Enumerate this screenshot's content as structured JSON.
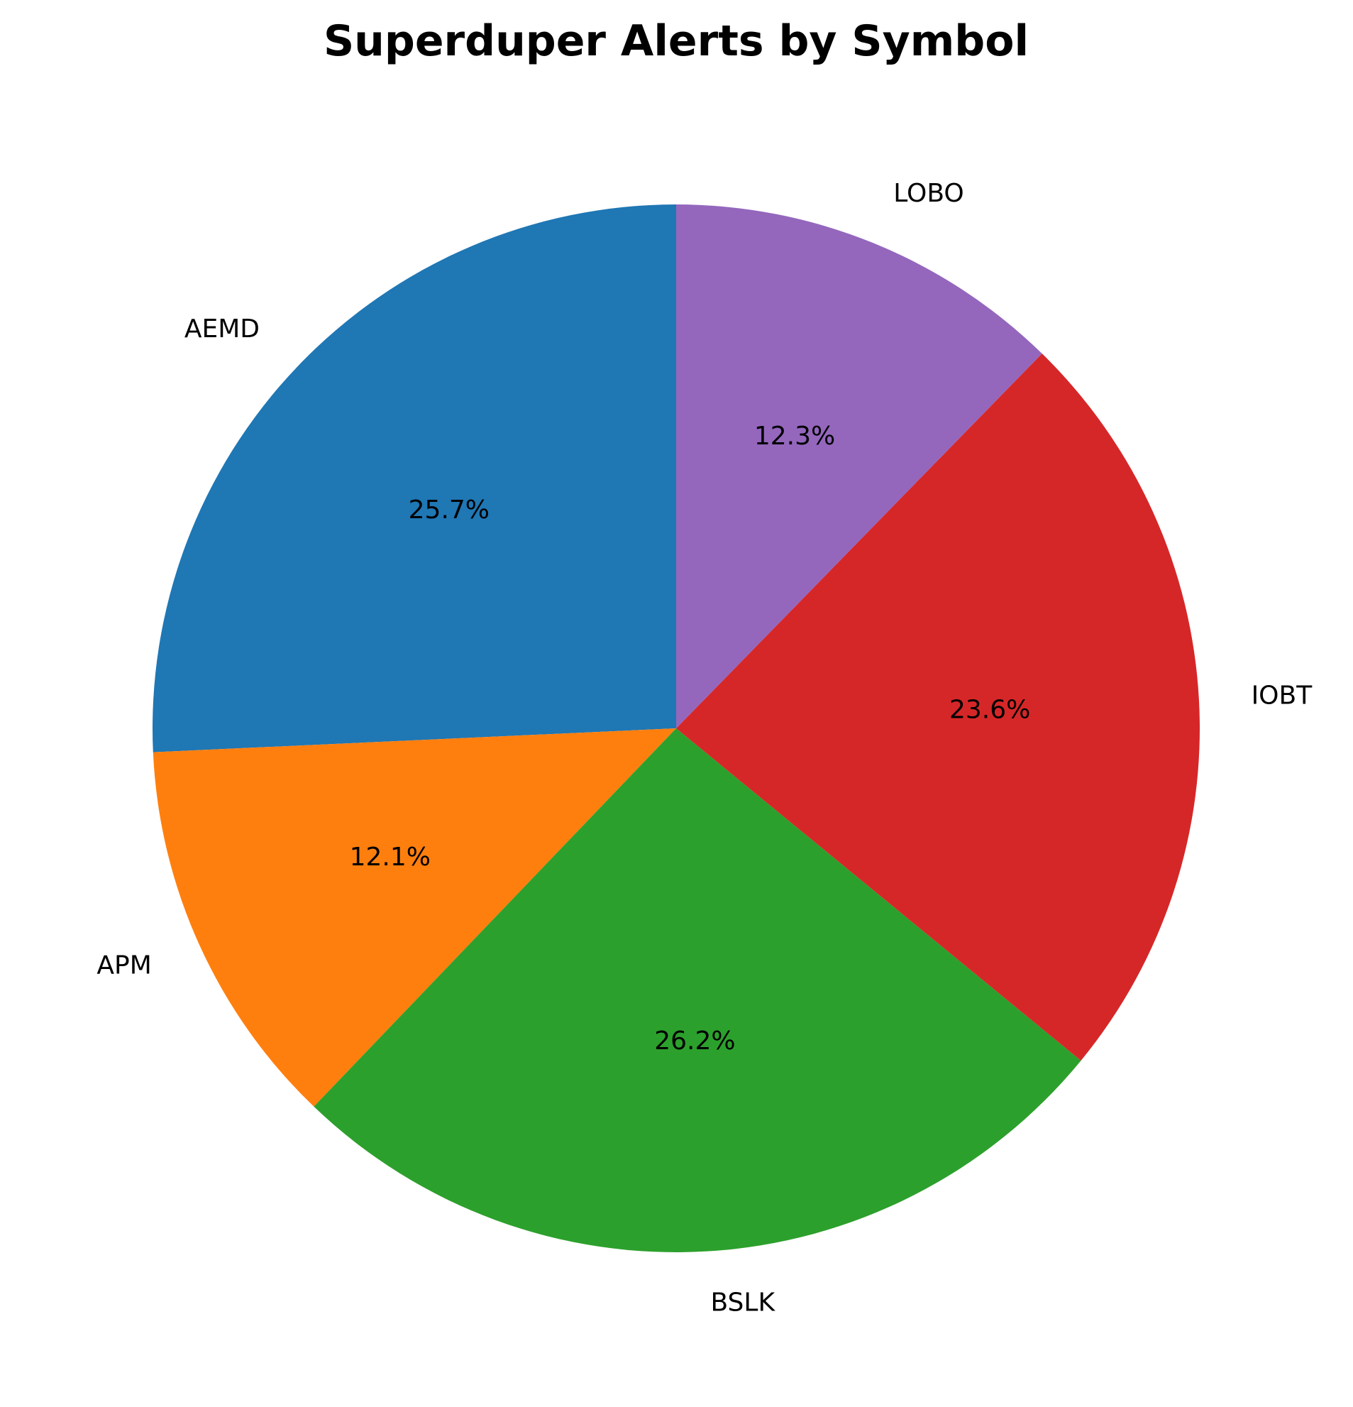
{
  "chart_data": {
    "type": "pie",
    "title": "Superduper Alerts by Symbol",
    "start_angle_deg": 90,
    "direction": "counterclockwise",
    "slices": [
      {
        "label": "AEMD",
        "percent": 25.7,
        "display": "25.7%",
        "color": "#1f77b4"
      },
      {
        "label": "APM",
        "percent": 12.1,
        "display": "12.1%",
        "color": "#ff7f0e"
      },
      {
        "label": "BSLK",
        "percent": 26.2,
        "display": "26.2%",
        "color": "#2ca02c"
      },
      {
        "label": "IOBT",
        "percent": 23.6,
        "display": "23.6%",
        "color": "#d62728"
      },
      {
        "label": "LOBO",
        "percent": 12.3,
        "display": "12.3%",
        "color": "#9467bd"
      }
    ]
  }
}
